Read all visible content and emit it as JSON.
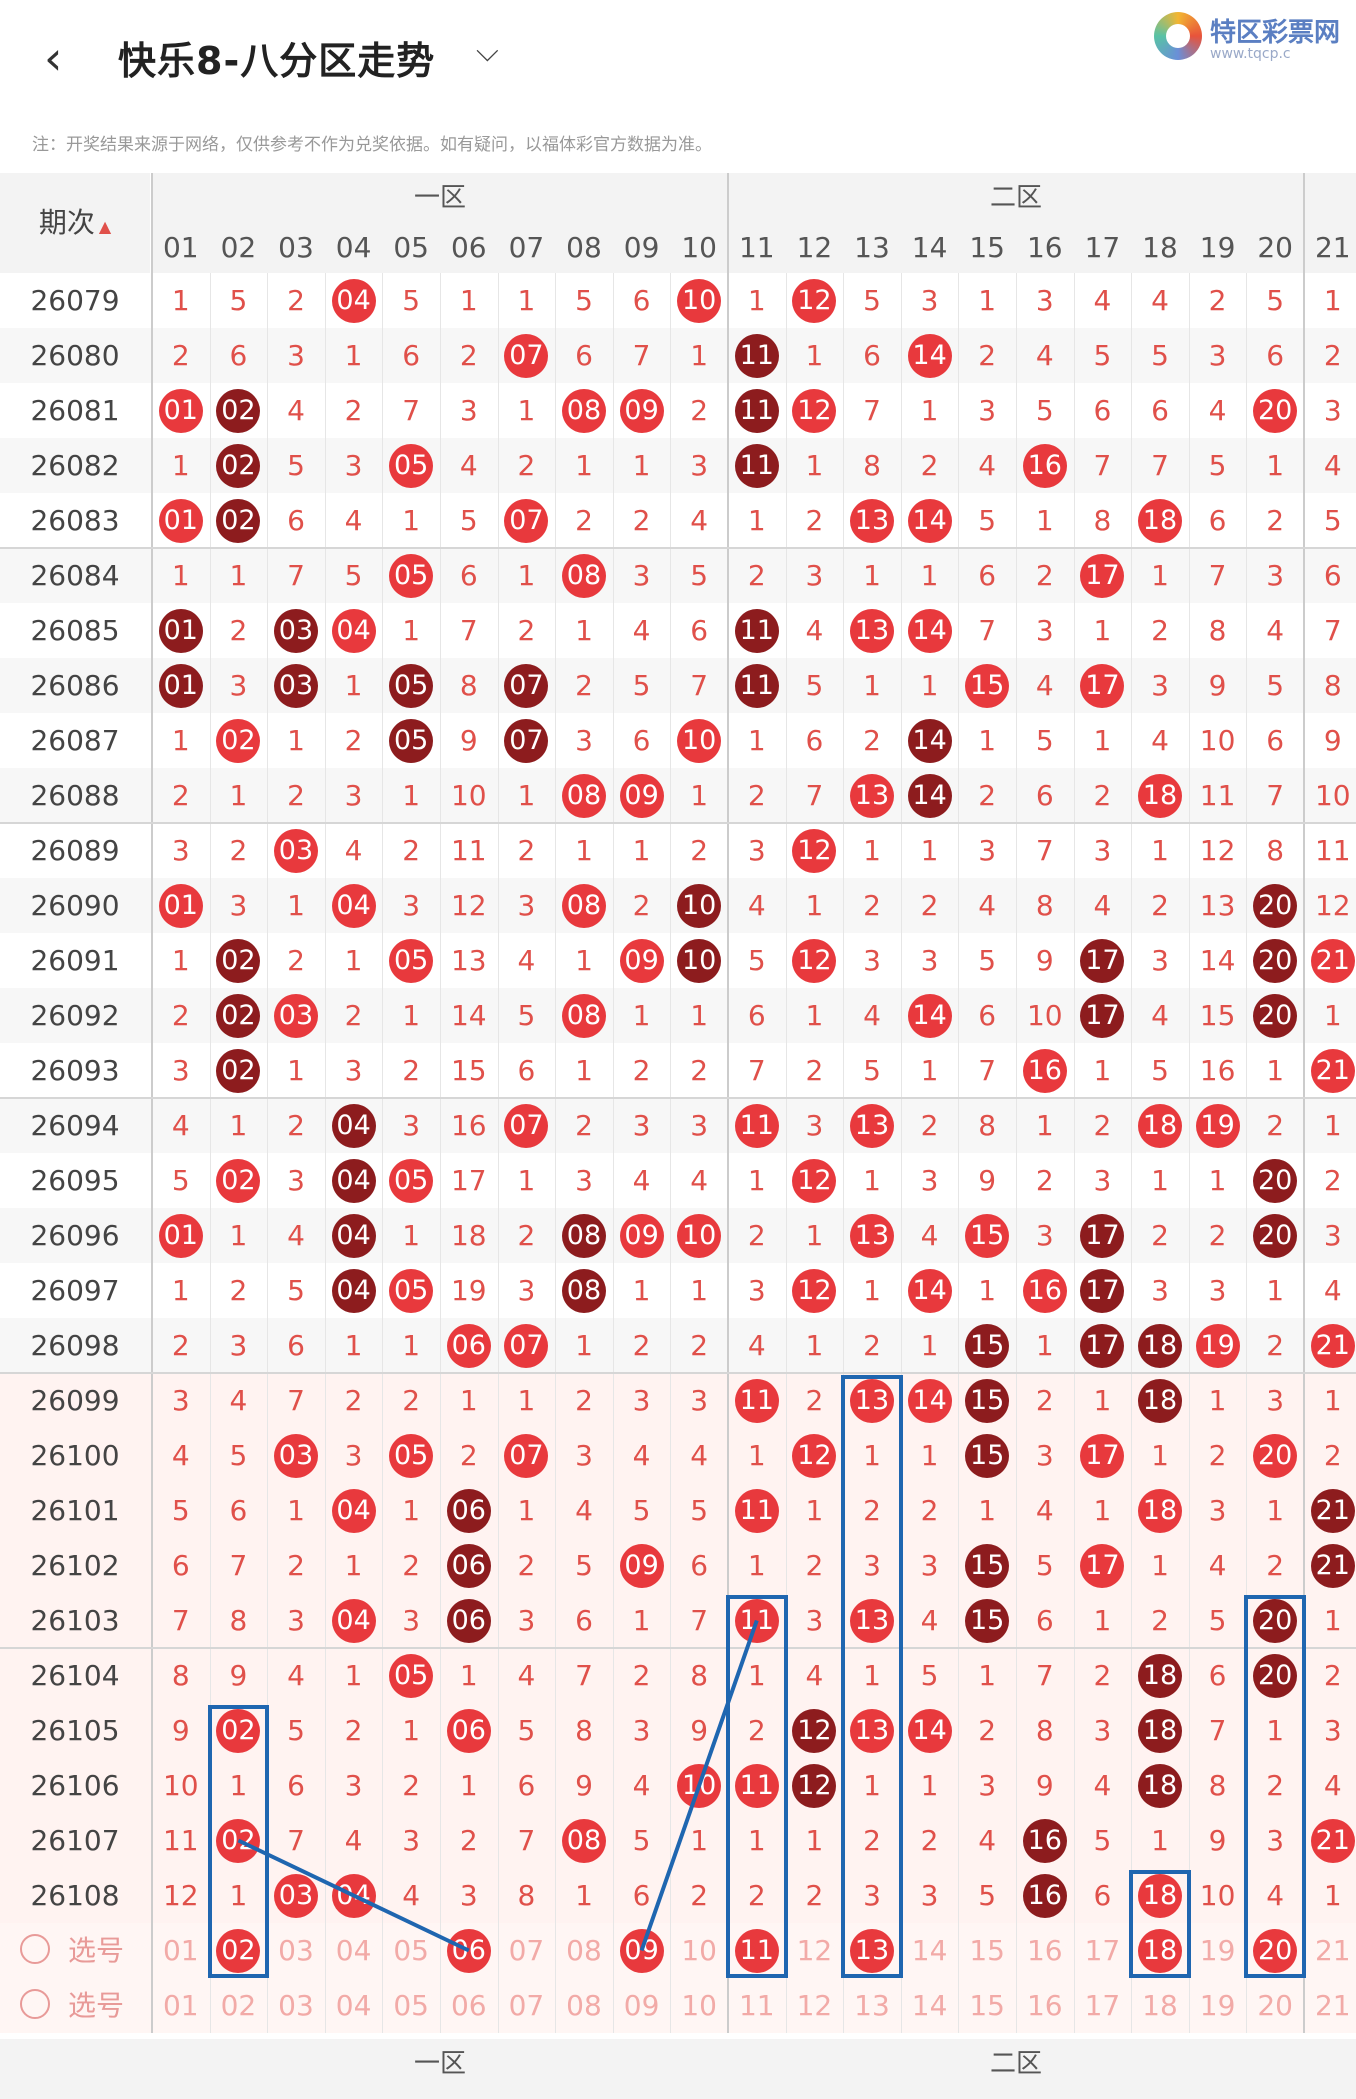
{
  "header": {
    "back_icon": "back-arrow-icon",
    "title": "快乐8-八分区走势",
    "title_caret": "⌵",
    "logo_text": "特区彩票网",
    "logo_sub": "www.tqcp.c"
  },
  "notice": "注：开奖结果来源于网络，仅供参考不作为兑奖依据。如有疑问，以福体彩官方数据为准。",
  "table": {
    "period_header": "期次",
    "zones": [
      "一区",
      "二区"
    ],
    "columns": [
      "01",
      "02",
      "03",
      "04",
      "05",
      "06",
      "07",
      "08",
      "09",
      "10",
      "11",
      "12",
      "13",
      "14",
      "15",
      "16",
      "17",
      "18",
      "19",
      "20",
      "21"
    ],
    "rows": [
      {
        "period": "26079",
        "cells": [
          "1",
          "5",
          "2",
          "04",
          "5",
          "1",
          "1",
          "5",
          "6",
          "10",
          "1",
          "12",
          "5",
          "3",
          "1",
          "3",
          "4",
          "4",
          "2",
          "5",
          "1"
        ],
        "hits": [
          3,
          9,
          11
        ]
      },
      {
        "period": "26080",
        "cells": [
          "2",
          "6",
          "3",
          "1",
          "6",
          "2",
          "07",
          "6",
          "7",
          "1",
          "11",
          "1",
          "6",
          "14",
          "2",
          "4",
          "5",
          "5",
          "3",
          "6",
          "2"
        ],
        "hits": [
          6,
          10,
          13
        ]
      },
      {
        "period": "26081",
        "cells": [
          "01",
          "02",
          "4",
          "2",
          "7",
          "3",
          "1",
          "08",
          "09",
          "2",
          "11",
          "12",
          "7",
          "1",
          "3",
          "5",
          "6",
          "6",
          "4",
          "20",
          "3"
        ],
        "hits": [
          0,
          1,
          7,
          8,
          10,
          11,
          19
        ]
      },
      {
        "period": "26082",
        "cells": [
          "1",
          "02",
          "5",
          "3",
          "05",
          "4",
          "2",
          "1",
          "1",
          "3",
          "11",
          "1",
          "8",
          "2",
          "4",
          "16",
          "7",
          "7",
          "5",
          "1",
          "4"
        ],
        "hits": [
          1,
          4,
          10,
          15
        ]
      },
      {
        "period": "26083",
        "cells": [
          "01",
          "02",
          "6",
          "4",
          "1",
          "5",
          "07",
          "2",
          "2",
          "4",
          "1",
          "2",
          "13",
          "14",
          "5",
          "1",
          "8",
          "18",
          "6",
          "2",
          "5"
        ],
        "hits": [
          0,
          1,
          6,
          12,
          13,
          17
        ]
      },
      {
        "period": "26084",
        "cells": [
          "1",
          "1",
          "7",
          "5",
          "05",
          "6",
          "1",
          "08",
          "3",
          "5",
          "2",
          "3",
          "1",
          "1",
          "6",
          "2",
          "17",
          "1",
          "7",
          "3",
          "6"
        ],
        "hits": [
          4,
          7,
          16
        ]
      },
      {
        "period": "26085",
        "cells": [
          "01",
          "2",
          "03",
          "04",
          "1",
          "7",
          "2",
          "1",
          "4",
          "6",
          "11",
          "4",
          "13",
          "14",
          "7",
          "3",
          "1",
          "2",
          "8",
          "4",
          "7"
        ],
        "hits": [
          0,
          2,
          3,
          10,
          12,
          13
        ]
      },
      {
        "period": "26086",
        "cells": [
          "01",
          "3",
          "03",
          "1",
          "05",
          "8",
          "07",
          "2",
          "5",
          "7",
          "11",
          "5",
          "1",
          "1",
          "15",
          "4",
          "17",
          "3",
          "9",
          "5",
          "8"
        ],
        "hits": [
          0,
          2,
          4,
          6,
          10,
          14,
          16
        ]
      },
      {
        "period": "26087",
        "cells": [
          "1",
          "02",
          "1",
          "2",
          "05",
          "9",
          "07",
          "3",
          "6",
          "10",
          "1",
          "6",
          "2",
          "14",
          "1",
          "5",
          "1",
          "4",
          "10",
          "6",
          "9"
        ],
        "hits": [
          1,
          4,
          6,
          9,
          13
        ]
      },
      {
        "period": "26088",
        "cells": [
          "2",
          "1",
          "2",
          "3",
          "1",
          "10",
          "1",
          "08",
          "09",
          "1",
          "2",
          "7",
          "13",
          "14",
          "2",
          "6",
          "2",
          "18",
          "11",
          "7",
          "10"
        ],
        "hits": [
          7,
          8,
          12,
          13,
          17
        ]
      },
      {
        "period": "26089",
        "cells": [
          "3",
          "2",
          "03",
          "4",
          "2",
          "11",
          "2",
          "1",
          "1",
          "2",
          "3",
          "12",
          "1",
          "1",
          "3",
          "7",
          "3",
          "1",
          "12",
          "8",
          "11"
        ],
        "hits": [
          2,
          11
        ]
      },
      {
        "period": "26090",
        "cells": [
          "01",
          "3",
          "1",
          "04",
          "3",
          "12",
          "3",
          "08",
          "2",
          "10",
          "4",
          "1",
          "2",
          "2",
          "4",
          "8",
          "4",
          "2",
          "13",
          "20",
          "12"
        ],
        "hits": [
          0,
          3,
          7,
          9,
          19
        ]
      },
      {
        "period": "26091",
        "cells": [
          "1",
          "02",
          "2",
          "1",
          "05",
          "13",
          "4",
          "1",
          "09",
          "10",
          "5",
          "12",
          "3",
          "3",
          "5",
          "9",
          "17",
          "3",
          "14",
          "20",
          "21"
        ],
        "hits": [
          1,
          4,
          8,
          9,
          11,
          16,
          19,
          20
        ]
      },
      {
        "period": "26092",
        "cells": [
          "2",
          "02",
          "03",
          "2",
          "1",
          "14",
          "5",
          "08",
          "1",
          "1",
          "6",
          "1",
          "4",
          "14",
          "6",
          "10",
          "17",
          "4",
          "15",
          "20",
          "1"
        ],
        "hits": [
          1,
          2,
          7,
          13,
          16,
          19
        ]
      },
      {
        "period": "26093",
        "cells": [
          "3",
          "02",
          "1",
          "3",
          "2",
          "15",
          "6",
          "1",
          "2",
          "2",
          "7",
          "2",
          "5",
          "1",
          "7",
          "16",
          "1",
          "5",
          "16",
          "1",
          "21"
        ],
        "hits": [
          1,
          15,
          20
        ]
      },
      {
        "period": "26094",
        "cells": [
          "4",
          "1",
          "2",
          "04",
          "3",
          "16",
          "07",
          "2",
          "3",
          "3",
          "11",
          "3",
          "13",
          "2",
          "8",
          "1",
          "2",
          "18",
          "19",
          "2",
          "1"
        ],
        "hits": [
          3,
          6,
          10,
          12,
          17,
          18
        ]
      },
      {
        "period": "26095",
        "cells": [
          "5",
          "02",
          "3",
          "04",
          "05",
          "17",
          "1",
          "3",
          "4",
          "4",
          "1",
          "12",
          "1",
          "3",
          "9",
          "2",
          "3",
          "1",
          "1",
          "20",
          "2"
        ],
        "hits": [
          1,
          3,
          4,
          11,
          19
        ]
      },
      {
        "period": "26096",
        "cells": [
          "01",
          "1",
          "4",
          "04",
          "1",
          "18",
          "2",
          "08",
          "09",
          "10",
          "2",
          "1",
          "13",
          "4",
          "15",
          "3",
          "17",
          "2",
          "2",
          "20",
          "3"
        ],
        "hits": [
          0,
          3,
          7,
          8,
          9,
          12,
          14,
          16,
          19
        ]
      },
      {
        "period": "26097",
        "cells": [
          "1",
          "2",
          "5",
          "04",
          "05",
          "19",
          "3",
          "08",
          "1",
          "1",
          "3",
          "12",
          "1",
          "14",
          "1",
          "16",
          "17",
          "3",
          "3",
          "1",
          "4"
        ],
        "hits": [
          3,
          4,
          7,
          11,
          13,
          15,
          16
        ]
      },
      {
        "period": "26098",
        "cells": [
          "2",
          "3",
          "6",
          "1",
          "1",
          "06",
          "07",
          "1",
          "2",
          "2",
          "4",
          "1",
          "2",
          "1",
          "15",
          "1",
          "17",
          "18",
          "19",
          "2",
          "21"
        ],
        "hits": [
          5,
          6,
          14,
          16,
          17,
          18,
          20
        ]
      },
      {
        "period": "26099",
        "cells": [
          "3",
          "4",
          "7",
          "2",
          "2",
          "1",
          "1",
          "2",
          "3",
          "3",
          "11",
          "2",
          "13",
          "14",
          "15",
          "2",
          "1",
          "18",
          "1",
          "3",
          "1"
        ],
        "hits": [
          10,
          12,
          13,
          14,
          17
        ]
      },
      {
        "period": "26100",
        "cells": [
          "4",
          "5",
          "03",
          "3",
          "05",
          "2",
          "07",
          "3",
          "4",
          "4",
          "1",
          "12",
          "1",
          "1",
          "15",
          "3",
          "17",
          "1",
          "2",
          "20",
          "2"
        ],
        "hits": [
          2,
          4,
          6,
          11,
          14,
          16,
          19
        ]
      },
      {
        "period": "26101",
        "cells": [
          "5",
          "6",
          "1",
          "04",
          "1",
          "06",
          "1",
          "4",
          "5",
          "5",
          "11",
          "1",
          "2",
          "2",
          "1",
          "4",
          "1",
          "18",
          "3",
          "1",
          "21"
        ],
        "hits": [
          3,
          5,
          10,
          17,
          20
        ]
      },
      {
        "period": "26102",
        "cells": [
          "6",
          "7",
          "2",
          "1",
          "2",
          "06",
          "2",
          "5",
          "09",
          "6",
          "1",
          "2",
          "3",
          "3",
          "15",
          "5",
          "17",
          "1",
          "4",
          "2",
          "21"
        ],
        "hits": [
          5,
          8,
          14,
          16,
          20
        ]
      },
      {
        "period": "26103",
        "cells": [
          "7",
          "8",
          "3",
          "04",
          "3",
          "06",
          "3",
          "6",
          "1",
          "7",
          "11",
          "3",
          "13",
          "4",
          "15",
          "6",
          "1",
          "2",
          "5",
          "20",
          "1"
        ],
        "hits": [
          3,
          5,
          10,
          12,
          14,
          19
        ]
      },
      {
        "period": "26104",
        "cells": [
          "8",
          "9",
          "4",
          "1",
          "05",
          "1",
          "4",
          "7",
          "2",
          "8",
          "1",
          "4",
          "1",
          "5",
          "1",
          "7",
          "2",
          "18",
          "6",
          "20",
          "2"
        ],
        "hits": [
          4,
          17,
          19
        ]
      },
      {
        "period": "26105",
        "cells": [
          "9",
          "02",
          "5",
          "2",
          "1",
          "06",
          "5",
          "8",
          "3",
          "9",
          "2",
          "12",
          "13",
          "14",
          "2",
          "8",
          "3",
          "18",
          "7",
          "1",
          "3"
        ],
        "hits": [
          1,
          5,
          11,
          12,
          13,
          17
        ]
      },
      {
        "period": "26106",
        "cells": [
          "10",
          "1",
          "6",
          "3",
          "2",
          "1",
          "6",
          "9",
          "4",
          "10",
          "11",
          "12",
          "1",
          "1",
          "3",
          "9",
          "4",
          "18",
          "8",
          "2",
          "4"
        ],
        "hits": [
          9,
          10,
          11,
          17
        ]
      },
      {
        "period": "26107",
        "cells": [
          "11",
          "02",
          "7",
          "4",
          "3",
          "2",
          "7",
          "08",
          "5",
          "1",
          "1",
          "1",
          "2",
          "2",
          "4",
          "16",
          "5",
          "1",
          "9",
          "3",
          "21"
        ],
        "hits": [
          1,
          7,
          15,
          20
        ]
      },
      {
        "period": "26108",
        "cells": [
          "12",
          "1",
          "03",
          "04",
          "4",
          "3",
          "8",
          "1",
          "6",
          "2",
          "2",
          "2",
          "3",
          "3",
          "5",
          "16",
          "6",
          "18",
          "10",
          "4",
          "1"
        ],
        "hits": [
          2,
          3,
          15,
          17
        ]
      }
    ],
    "select_label": "选号",
    "select_row1_picked": [
      "02",
      "06",
      "09",
      "11",
      "13",
      "18",
      "20"
    ],
    "colors": {
      "hit": "#e8393d",
      "hit_dark": "#8d1c1e",
      "miss": "#e0504a",
      "box": "#1f66b0"
    }
  }
}
